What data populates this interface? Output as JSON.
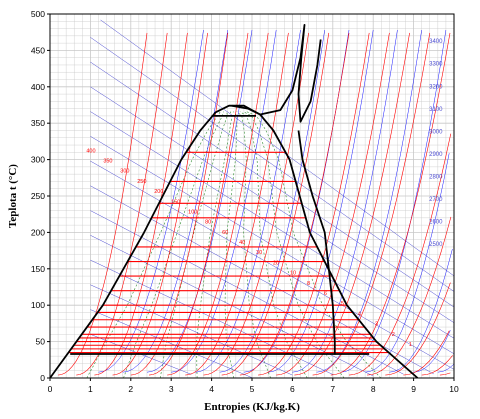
{
  "chart_data": {
    "type": "line",
    "title": "",
    "xlabel": "Entropies (KJ/kg.K)",
    "ylabel": "Teplota  t (°C)",
    "xlim": [
      0,
      10
    ],
    "ylim": [
      0,
      500
    ],
    "x_ticks": [
      "0",
      "1",
      "2",
      "3",
      "4",
      "5",
      "6",
      "7",
      "8",
      "9",
      "10"
    ],
    "y_ticks": [
      "0",
      "50",
      "100",
      "150",
      "200",
      "250",
      "300",
      "350",
      "400",
      "450",
      "500"
    ],
    "grid": true,
    "colors": {
      "grid": "#c8c8c8",
      "outline": "#000000",
      "isobar": "#ff0000",
      "constant_volume": "#1a1aff",
      "quality": "#2e8b2e",
      "enthalpy": "#4b4bd1"
    },
    "series": [
      {
        "values": [
          {
            "x": 0.0,
            "y": 0
          },
          {
            "x": 1.31,
            "y": 100
          },
          {
            "x": 2.33,
            "y": 200
          },
          {
            "x": 3.25,
            "y": 300
          },
          {
            "x": 3.72,
            "y": 340
          },
          {
            "x": 4.1,
            "y": 365
          },
          {
            "x": 4.43,
            "y": 374
          },
          {
            "x": 4.8,
            "y": 374
          },
          {
            "x": 5.2,
            "y": 362
          },
          {
            "x": 5.53,
            "y": 340
          },
          {
            "x": 5.93,
            "y": 300
          },
          {
            "x": 6.43,
            "y": 200
          },
          {
            "x": 7.35,
            "y": 100
          },
          {
            "x": 8.08,
            "y": 50
          },
          {
            "x": 9.1,
            "y": 0
          }
        ]
      },
      {
        "values": [
          {
            "x": 4.5,
            "y": 374
          },
          {
            "x": 4.9,
            "y": 370
          },
          {
            "x": 5.2,
            "y": 362
          },
          {
            "x": 5.7,
            "y": 368
          },
          {
            "x": 6.0,
            "y": 395
          },
          {
            "x": 6.2,
            "y": 440
          },
          {
            "x": 6.3,
            "y": 485
          },
          {
            "x": 6.22,
            "y": 440
          },
          {
            "x": 6.15,
            "y": 390
          },
          {
            "x": 6.2,
            "y": 352
          },
          {
            "x": 6.45,
            "y": 380
          },
          {
            "x": 6.62,
            "y": 430
          },
          {
            "x": 6.7,
            "y": 465
          }
        ]
      },
      {
        "values": [
          {
            "x": 6.15,
            "y": 340
          },
          {
            "x": 6.25,
            "y": 300
          },
          {
            "x": 6.5,
            "y": 250
          },
          {
            "x": 6.8,
            "y": 200
          },
          {
            "x": 6.9,
            "y": 150
          },
          {
            "x": 7.0,
            "y": 100
          },
          {
            "x": 7.05,
            "y": 50
          },
          {
            "x": 7.05,
            "y": 32
          }
        ]
      },
      {
        "values": [
          {
            "x": 4.0,
            "y": 360
          },
          {
            "x": 5.1,
            "y": 360
          }
        ]
      },
      {
        "values": [
          {
            "x": 0.5,
            "y": 33
          },
          {
            "x": 7.9,
            "y": 33
          }
        ]
      }
    ],
    "isotherm_plateaus_y": [
      310,
      270,
      240,
      220,
      180,
      160,
      140,
      120,
      100,
      90,
      80,
      70,
      60,
      55,
      50,
      45,
      40,
      35
    ],
    "isobar_labels": [
      "400",
      "350",
      "300",
      "250",
      "200",
      "150",
      "100",
      "80",
      "60",
      "40",
      "30",
      "20",
      "10",
      "8",
      "6",
      "5",
      "4",
      "3",
      "2",
      "1"
    ],
    "enthalpy_labels": [
      "3400",
      "3300",
      "3200",
      "3100",
      "3000",
      "2900",
      "2800",
      "2700",
      "2600",
      "2500"
    ]
  }
}
